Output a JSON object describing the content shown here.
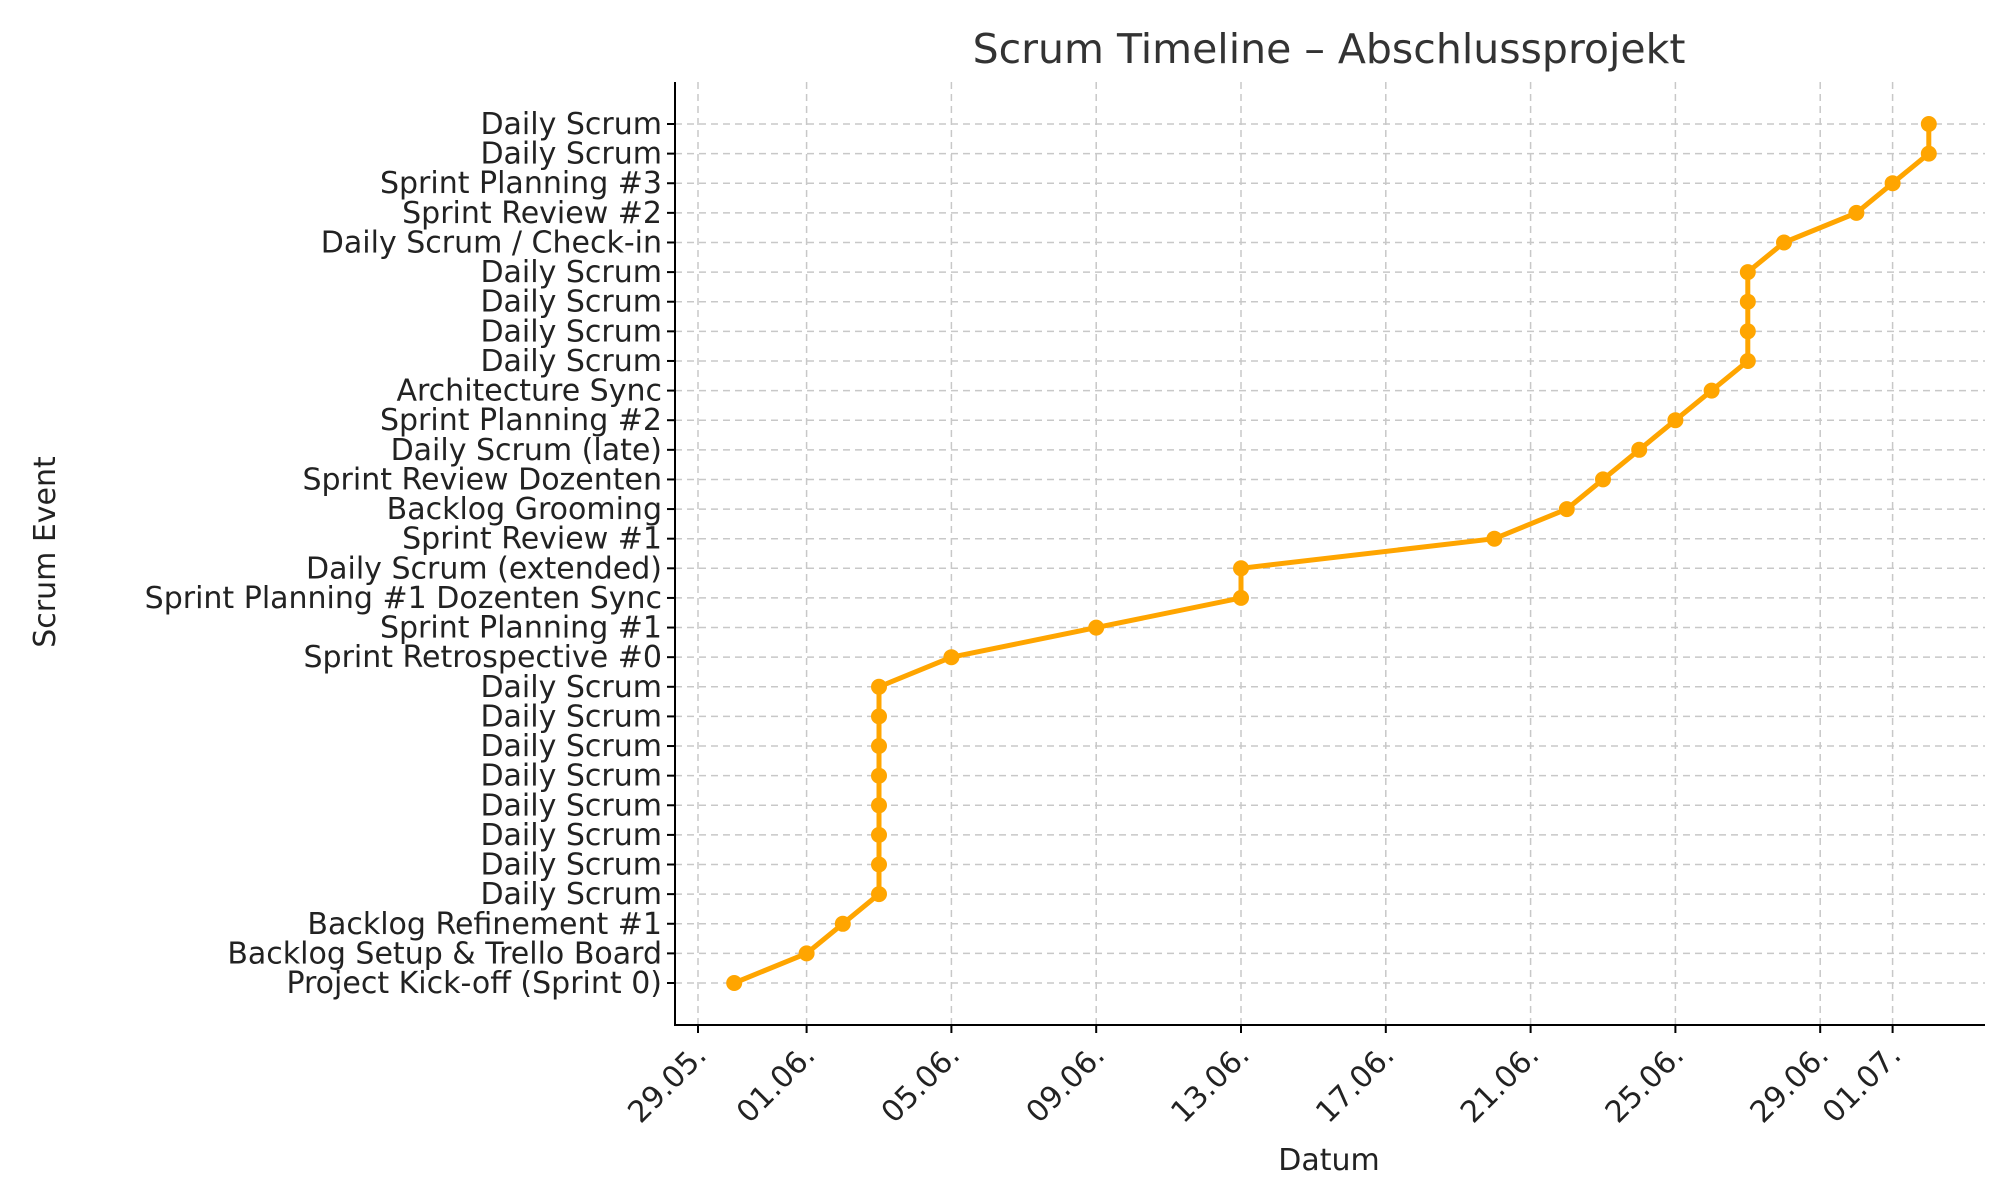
{
  "chart_data": {
    "type": "line",
    "title": "Scrum Timeline – Abschlussprojekt",
    "xlabel": "Datum",
    "ylabel": "Scrum Event",
    "x_ticks": [
      "29.05.",
      "01.06.",
      "05.06.",
      "09.06.",
      "13.06.",
      "17.06.",
      "21.06.",
      "25.06.",
      "29.06.",
      "01.07."
    ],
    "xlim": [
      "2024-05-28",
      "2024-07-02"
    ],
    "grid": true,
    "color": "#FFA500",
    "series": [
      {
        "points": [
          {
            "event": "Project Kick-off (Sprint 0)",
            "date": "2024-05-30"
          },
          {
            "event": "Backlog Setup & Trello Board",
            "date": "2024-06-01"
          },
          {
            "event": "Backlog Refinement #1",
            "date": "2024-06-02"
          },
          {
            "event": "Daily Scrum",
            "date": "2024-06-03"
          },
          {
            "event": "Daily Scrum",
            "date": "2024-06-03"
          },
          {
            "event": "Daily Scrum",
            "date": "2024-06-03"
          },
          {
            "event": "Daily Scrum",
            "date": "2024-06-03"
          },
          {
            "event": "Daily Scrum",
            "date": "2024-06-03"
          },
          {
            "event": "Daily Scrum",
            "date": "2024-06-03"
          },
          {
            "event": "Daily Scrum",
            "date": "2024-06-03"
          },
          {
            "event": "Daily Scrum",
            "date": "2024-06-03"
          },
          {
            "event": "Sprint Retrospective #0",
            "date": "2024-06-05"
          },
          {
            "event": "Sprint Planning #1",
            "date": "2024-06-09"
          },
          {
            "event": "Sprint Planning #1  Dozenten Sync",
            "date": "2024-06-13"
          },
          {
            "event": "Daily Scrum (extended)",
            "date": "2024-06-13"
          },
          {
            "event": "Sprint Review #1",
            "date": "2024-06-20"
          },
          {
            "event": "Backlog Grooming",
            "date": "2024-06-22"
          },
          {
            "event": "Sprint Review  Dozenten",
            "date": "2024-06-23"
          },
          {
            "event": "Daily Scrum (late)",
            "date": "2024-06-24"
          },
          {
            "event": "Sprint Planning #2",
            "date": "2024-06-25"
          },
          {
            "event": "Architecture Sync",
            "date": "2024-06-26"
          },
          {
            "event": "Daily Scrum",
            "date": "2024-06-27"
          },
          {
            "event": "Daily Scrum",
            "date": "2024-06-27"
          },
          {
            "event": "Daily Scrum",
            "date": "2024-06-27"
          },
          {
            "event": "Daily Scrum",
            "date": "2024-06-27"
          },
          {
            "event": "Daily Scrum / Check-in",
            "date": "2024-06-28"
          },
          {
            "event": "Sprint Review #2",
            "date": "2024-06-30"
          },
          {
            "event": "Sprint Planning #3",
            "date": "2024-07-01"
          },
          {
            "event": "Daily Scrum",
            "date": "2024-07-02"
          },
          {
            "event": "Daily Scrum",
            "date": "2024-07-02"
          }
        ]
      }
    ]
  }
}
